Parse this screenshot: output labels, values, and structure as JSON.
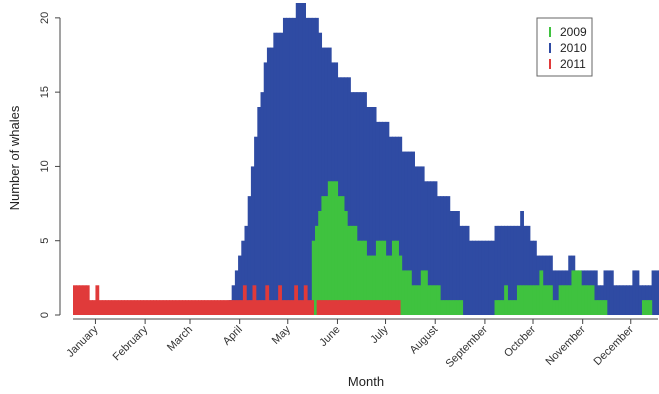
{
  "chart_data": {
    "type": "bar",
    "title": "",
    "xlabel": "Month",
    "ylabel": "Number of whales",
    "ylim": [
      0,
      21
    ],
    "yticks": [
      0,
      5,
      10,
      15,
      20
    ],
    "x_unit": "day of year",
    "xlim": [
      1,
      366
    ],
    "months": [
      {
        "label": "January",
        "day": 15
      },
      {
        "label": "February",
        "day": 46
      },
      {
        "label": "March",
        "day": 74
      },
      {
        "label": "April",
        "day": 105
      },
      {
        "label": "May",
        "day": 135
      },
      {
        "label": "June",
        "day": 166
      },
      {
        "label": "July",
        "day": 196
      },
      {
        "label": "August",
        "day": 227
      },
      {
        "label": "September",
        "day": 258
      },
      {
        "label": "October",
        "day": 288
      },
      {
        "label": "November",
        "day": 319
      },
      {
        "label": "December",
        "day": 349
      }
    ],
    "legend_position": "top-right",
    "series": [
      {
        "name": "2010",
        "color": "#2f4ba3",
        "points": [
          [
            98,
            1
          ],
          [
            100,
            2
          ],
          [
            102,
            3
          ],
          [
            104,
            4
          ],
          [
            106,
            5
          ],
          [
            108,
            6
          ],
          [
            110,
            8
          ],
          [
            112,
            10
          ],
          [
            114,
            12
          ],
          [
            116,
            14
          ],
          [
            118,
            15
          ],
          [
            120,
            17
          ],
          [
            122,
            18
          ],
          [
            124,
            18
          ],
          [
            126,
            19
          ],
          [
            128,
            19
          ],
          [
            130,
            19
          ],
          [
            132,
            20
          ],
          [
            134,
            20
          ],
          [
            136,
            20
          ],
          [
            138,
            20
          ],
          [
            140,
            21
          ],
          [
            142,
            21
          ],
          [
            144,
            21
          ],
          [
            146,
            20
          ],
          [
            148,
            20
          ],
          [
            150,
            20
          ],
          [
            152,
            20
          ],
          [
            154,
            19
          ],
          [
            156,
            18
          ],
          [
            158,
            18
          ],
          [
            160,
            18
          ],
          [
            162,
            17
          ],
          [
            164,
            17
          ],
          [
            166,
            16
          ],
          [
            168,
            16
          ],
          [
            170,
            16
          ],
          [
            172,
            16
          ],
          [
            174,
            15
          ],
          [
            176,
            15
          ],
          [
            178,
            15
          ],
          [
            180,
            15
          ],
          [
            182,
            15
          ],
          [
            184,
            14
          ],
          [
            186,
            14
          ],
          [
            188,
            14
          ],
          [
            190,
            13
          ],
          [
            192,
            13
          ],
          [
            194,
            13
          ],
          [
            196,
            13
          ],
          [
            198,
            12
          ],
          [
            200,
            12
          ],
          [
            202,
            12
          ],
          [
            204,
            12
          ],
          [
            206,
            11
          ],
          [
            208,
            11
          ],
          [
            210,
            11
          ],
          [
            212,
            11
          ],
          [
            214,
            10
          ],
          [
            216,
            10
          ],
          [
            218,
            10
          ],
          [
            220,
            9
          ],
          [
            222,
            9
          ],
          [
            224,
            9
          ],
          [
            226,
            9
          ],
          [
            228,
            8
          ],
          [
            230,
            8
          ],
          [
            232,
            8
          ],
          [
            234,
            8
          ],
          [
            236,
            7
          ],
          [
            238,
            7
          ],
          [
            240,
            7
          ],
          [
            242,
            6
          ],
          [
            244,
            6
          ],
          [
            246,
            6
          ],
          [
            248,
            5
          ],
          [
            250,
            5
          ],
          [
            252,
            5
          ],
          [
            254,
            5
          ],
          [
            256,
            5
          ],
          [
            258,
            5
          ],
          [
            260,
            5
          ],
          [
            262,
            5
          ],
          [
            264,
            6
          ],
          [
            266,
            6
          ],
          [
            268,
            6
          ],
          [
            270,
            6
          ],
          [
            272,
            6
          ],
          [
            274,
            6
          ],
          [
            276,
            6
          ],
          [
            278,
            6
          ],
          [
            280,
            7
          ],
          [
            282,
            6
          ],
          [
            284,
            6
          ],
          [
            286,
            5
          ],
          [
            288,
            5
          ],
          [
            290,
            4
          ],
          [
            292,
            4
          ],
          [
            294,
            4
          ],
          [
            296,
            4
          ],
          [
            298,
            4
          ],
          [
            300,
            3
          ],
          [
            302,
            3
          ],
          [
            304,
            3
          ],
          [
            306,
            3
          ],
          [
            308,
            3
          ],
          [
            310,
            4
          ],
          [
            312,
            4
          ],
          [
            314,
            3
          ],
          [
            316,
            3
          ],
          [
            318,
            3
          ],
          [
            320,
            3
          ],
          [
            322,
            3
          ],
          [
            324,
            3
          ],
          [
            326,
            3
          ],
          [
            328,
            2
          ],
          [
            330,
            2
          ],
          [
            332,
            3
          ],
          [
            334,
            3
          ],
          [
            336,
            3
          ],
          [
            338,
            2
          ],
          [
            340,
            2
          ],
          [
            342,
            2
          ],
          [
            344,
            2
          ],
          [
            346,
            2
          ],
          [
            348,
            2
          ],
          [
            350,
            3
          ],
          [
            352,
            3
          ],
          [
            354,
            2
          ],
          [
            356,
            2
          ],
          [
            358,
            2
          ],
          [
            360,
            2
          ],
          [
            362,
            3
          ],
          [
            364,
            3
          ],
          [
            366,
            3
          ]
        ]
      },
      {
        "name": "2009",
        "color": "#3fc23f",
        "points": [
          [
            150,
            5
          ],
          [
            152,
            6
          ],
          [
            154,
            7
          ],
          [
            156,
            8
          ],
          [
            158,
            8
          ],
          [
            160,
            9
          ],
          [
            162,
            9
          ],
          [
            164,
            9
          ],
          [
            166,
            8
          ],
          [
            168,
            8
          ],
          [
            170,
            7
          ],
          [
            172,
            6
          ],
          [
            174,
            6
          ],
          [
            176,
            6
          ],
          [
            178,
            5
          ],
          [
            180,
            5
          ],
          [
            182,
            5
          ],
          [
            184,
            4
          ],
          [
            186,
            4
          ],
          [
            188,
            4
          ],
          [
            190,
            5
          ],
          [
            192,
            5
          ],
          [
            194,
            5
          ],
          [
            196,
            4
          ],
          [
            198,
            4
          ],
          [
            200,
            5
          ],
          [
            202,
            5
          ],
          [
            204,
            4
          ],
          [
            206,
            3
          ],
          [
            208,
            3
          ],
          [
            210,
            3
          ],
          [
            212,
            2
          ],
          [
            214,
            2
          ],
          [
            216,
            2
          ],
          [
            218,
            3
          ],
          [
            220,
            3
          ],
          [
            222,
            2
          ],
          [
            224,
            2
          ],
          [
            226,
            2
          ],
          [
            228,
            2
          ],
          [
            230,
            1
          ],
          [
            232,
            1
          ],
          [
            234,
            1
          ],
          [
            236,
            1
          ],
          [
            238,
            1
          ],
          [
            240,
            1
          ],
          [
            242,
            1
          ],
          [
            244,
            0
          ],
          [
            264,
            1
          ],
          [
            266,
            1
          ],
          [
            268,
            1
          ],
          [
            270,
            2
          ],
          [
            272,
            1
          ],
          [
            274,
            1
          ],
          [
            276,
            1
          ],
          [
            278,
            2
          ],
          [
            280,
            2
          ],
          [
            282,
            2
          ],
          [
            284,
            2
          ],
          [
            286,
            2
          ],
          [
            288,
            2
          ],
          [
            290,
            2
          ],
          [
            292,
            3
          ],
          [
            294,
            2
          ],
          [
            296,
            2
          ],
          [
            298,
            2
          ],
          [
            300,
            1
          ],
          [
            302,
            1
          ],
          [
            304,
            2
          ],
          [
            306,
            2
          ],
          [
            308,
            2
          ],
          [
            310,
            2
          ],
          [
            312,
            3
          ],
          [
            314,
            3
          ],
          [
            316,
            3
          ],
          [
            318,
            2
          ],
          [
            320,
            2
          ],
          [
            322,
            2
          ],
          [
            324,
            2
          ],
          [
            326,
            1
          ],
          [
            328,
            1
          ],
          [
            330,
            1
          ],
          [
            332,
            1
          ],
          [
            334,
            0
          ],
          [
            356,
            1
          ],
          [
            358,
            1
          ],
          [
            360,
            1
          ]
        ]
      },
      {
        "name": "2011",
        "color": "#e03a3a",
        "points": [
          [
            1,
            2
          ],
          [
            3,
            2
          ],
          [
            5,
            2
          ],
          [
            7,
            2
          ],
          [
            9,
            2
          ],
          [
            11,
            1
          ],
          [
            13,
            1
          ],
          [
            15,
            2
          ],
          [
            17,
            1
          ],
          [
            19,
            1
          ],
          [
            21,
            1
          ],
          [
            23,
            1
          ],
          [
            25,
            1
          ],
          [
            27,
            1
          ],
          [
            29,
            1
          ],
          [
            31,
            1
          ],
          [
            33,
            1
          ],
          [
            35,
            1
          ],
          [
            37,
            1
          ],
          [
            39,
            1
          ],
          [
            41,
            1
          ],
          [
            43,
            1
          ],
          [
            45,
            1
          ],
          [
            47,
            1
          ],
          [
            49,
            1
          ],
          [
            51,
            1
          ],
          [
            53,
            1
          ],
          [
            55,
            1
          ],
          [
            57,
            1
          ],
          [
            59,
            1
          ],
          [
            61,
            1
          ],
          [
            63,
            1
          ],
          [
            65,
            1
          ],
          [
            67,
            1
          ],
          [
            69,
            1
          ],
          [
            71,
            1
          ],
          [
            73,
            1
          ],
          [
            75,
            1
          ],
          [
            77,
            1
          ],
          [
            79,
            1
          ],
          [
            81,
            1
          ],
          [
            83,
            1
          ],
          [
            85,
            1
          ],
          [
            87,
            1
          ],
          [
            89,
            1
          ],
          [
            91,
            1
          ],
          [
            93,
            1
          ],
          [
            95,
            1
          ],
          [
            97,
            1
          ],
          [
            99,
            1
          ],
          [
            101,
            1
          ],
          [
            103,
            1
          ],
          [
            105,
            1
          ],
          [
            107,
            2
          ],
          [
            109,
            1
          ],
          [
            111,
            1
          ],
          [
            113,
            2
          ],
          [
            115,
            1
          ],
          [
            117,
            1
          ],
          [
            119,
            1
          ],
          [
            121,
            2
          ],
          [
            123,
            1
          ],
          [
            125,
            1
          ],
          [
            127,
            1
          ],
          [
            129,
            2
          ],
          [
            131,
            1
          ],
          [
            133,
            1
          ],
          [
            135,
            1
          ],
          [
            137,
            1
          ],
          [
            139,
            2
          ],
          [
            141,
            1
          ],
          [
            143,
            1
          ],
          [
            145,
            2
          ],
          [
            147,
            1
          ],
          [
            149,
            1
          ],
          [
            153,
            1
          ],
          [
            155,
            1
          ],
          [
            157,
            1
          ],
          [
            159,
            1
          ],
          [
            161,
            1
          ],
          [
            163,
            1
          ],
          [
            165,
            1
          ],
          [
            167,
            1
          ],
          [
            169,
            1
          ],
          [
            171,
            1
          ],
          [
            173,
            1
          ],
          [
            175,
            1
          ],
          [
            177,
            1
          ],
          [
            179,
            1
          ],
          [
            181,
            1
          ],
          [
            183,
            1
          ],
          [
            185,
            1
          ],
          [
            187,
            1
          ],
          [
            189,
            1
          ],
          [
            191,
            1
          ],
          [
            193,
            1
          ],
          [
            195,
            1
          ],
          [
            197,
            1
          ],
          [
            199,
            1
          ],
          [
            201,
            1
          ],
          [
            203,
            1
          ]
        ]
      }
    ]
  }
}
